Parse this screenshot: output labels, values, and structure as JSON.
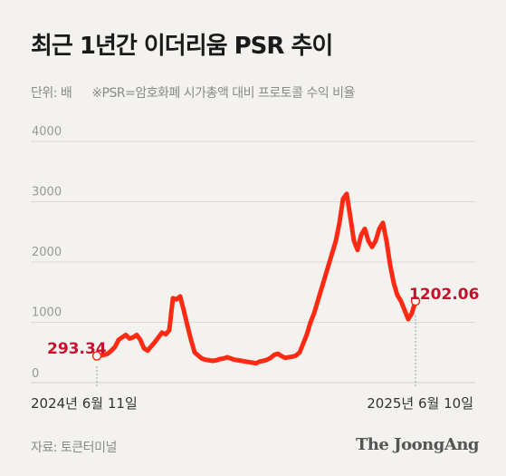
{
  "header": {
    "title": "최근 1년간 이더리움 PSR 추이",
    "unit": "단위: 배",
    "note": "※PSR=암호화폐 시가총액 대비 프로토콜 수익 비율"
  },
  "footer": {
    "source": "자료: 토큰터미널",
    "brand": "The JoongAng"
  },
  "chart_data": {
    "type": "line",
    "y_ticks": [
      "4000",
      "3000",
      "2000",
      "1000",
      "0"
    ],
    "ylim": [
      0,
      4000
    ],
    "grid": true,
    "x_start_label": "2024년 6월 11일",
    "x_end_label": "2025년 6월 10일",
    "start_value_label": "293.34",
    "end_value_label": "1202.06",
    "line_color": "#ff2a14",
    "highlight_color": "#c8102e",
    "series": [
      {
        "values": [
          293.34,
          300,
          310,
          330,
          380,
          440,
          560,
          600,
          640,
          580,
          600,
          640,
          560,
          420,
          380,
          450,
          520,
          600,
          680,
          650,
          720,
          1250,
          1230,
          1280,
          1050,
          800,
          560,
          350,
          300,
          250,
          230,
          220,
          210,
          220,
          240,
          250,
          270,
          250,
          230,
          220,
          210,
          200,
          190,
          180,
          170,
          200,
          210,
          230,
          260,
          310,
          330,
          290,
          260,
          270,
          280,
          300,
          350,
          500,
          650,
          850,
          1000,
          1200,
          1400,
          1600,
          1800,
          2000,
          2200,
          2500,
          2900,
          2980,
          2600,
          2200,
          2050,
          2300,
          2400,
          2200,
          2100,
          2200,
          2400,
          2500,
          2200,
          1800,
          1500,
          1300,
          1200,
          1050,
          900,
          1000,
          1202.06
        ]
      }
    ]
  }
}
